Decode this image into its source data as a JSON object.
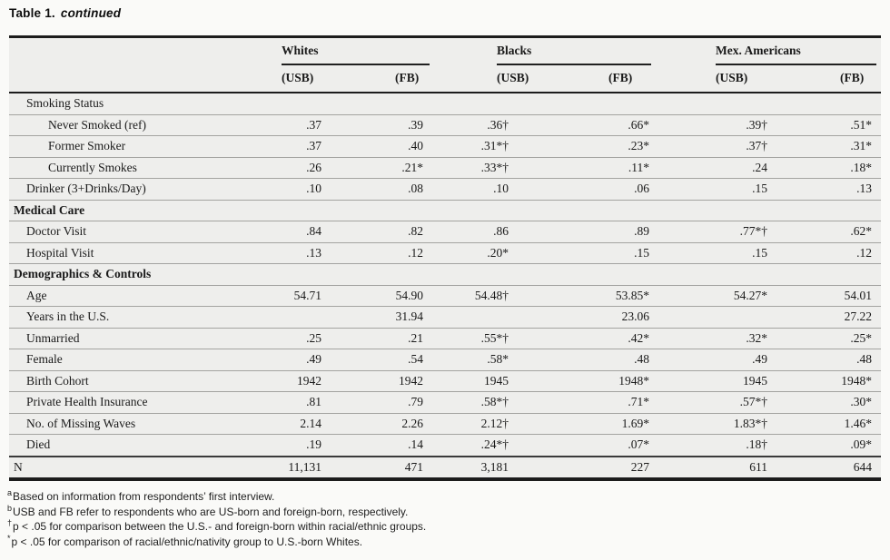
{
  "title": {
    "prefix": "Table 1.",
    "suffix": "continued"
  },
  "table": {
    "groups": [
      {
        "label": "Whites"
      },
      {
        "label": "Blacks"
      },
      {
        "label": "Mex. Americans"
      }
    ],
    "subheaders": [
      "(USB)",
      "(FB)",
      "(USB)",
      "(FB)",
      "(USB)",
      "(FB)"
    ],
    "rows": [
      {
        "label": "Smoking Status",
        "indent": 1,
        "bold": false,
        "values": [
          "",
          "",
          "",
          "",
          "",
          ""
        ]
      },
      {
        "label": "Never Smoked (ref)",
        "indent": 2,
        "bold": false,
        "values": [
          ".37",
          ".39",
          ".36†",
          ".66*",
          ".39†",
          ".51*"
        ]
      },
      {
        "label": "Former Smoker",
        "indent": 2,
        "bold": false,
        "values": [
          ".37",
          ".40",
          ".31*†",
          ".23*",
          ".37†",
          ".31*"
        ]
      },
      {
        "label": "Currently Smokes",
        "indent": 2,
        "bold": false,
        "values": [
          ".26",
          ".21*",
          ".33*†",
          ".11*",
          ".24",
          ".18*"
        ]
      },
      {
        "label": "Drinker (3+Drinks/Day)",
        "indent": 1,
        "bold": false,
        "values": [
          ".10",
          ".08",
          ".10",
          ".06",
          ".15",
          ".13"
        ]
      },
      {
        "label": "Medical Care",
        "indent": 0,
        "bold": true,
        "values": [
          "",
          "",
          "",
          "",
          "",
          ""
        ]
      },
      {
        "label": "Doctor Visit",
        "indent": 1,
        "bold": false,
        "values": [
          ".84",
          ".82",
          ".86",
          ".89",
          ".77*†",
          ".62*"
        ]
      },
      {
        "label": "Hospital Visit",
        "indent": 1,
        "bold": false,
        "values": [
          ".13",
          ".12",
          ".20*",
          ".15",
          ".15",
          ".12"
        ]
      },
      {
        "label": "Demographics & Controls",
        "indent": 0,
        "bold": true,
        "values": [
          "",
          "",
          "",
          "",
          "",
          ""
        ]
      },
      {
        "label": "Age",
        "indent": 1,
        "bold": false,
        "values": [
          "54.71",
          "54.90",
          "54.48†",
          "53.85*",
          "54.27*",
          "54.01"
        ]
      },
      {
        "label": "Years in the U.S.",
        "indent": 1,
        "bold": false,
        "values": [
          "",
          "31.94",
          "",
          "23.06",
          "",
          "27.22"
        ]
      },
      {
        "label": "Unmarried",
        "indent": 1,
        "bold": false,
        "values": [
          ".25",
          ".21",
          ".55*†",
          ".42*",
          ".32*",
          ".25*"
        ]
      },
      {
        "label": "Female",
        "indent": 1,
        "bold": false,
        "values": [
          ".49",
          ".54",
          ".58*",
          ".48",
          ".49",
          ".48"
        ]
      },
      {
        "label": "Birth Cohort",
        "indent": 1,
        "bold": false,
        "values": [
          "1942",
          "1942",
          "1945",
          "1948*",
          "1945",
          "1948*"
        ]
      },
      {
        "label": "Private Health Insurance",
        "indent": 1,
        "bold": false,
        "values": [
          ".81",
          ".79",
          ".58*†",
          ".71*",
          ".57*†",
          ".30*"
        ]
      },
      {
        "label": "No. of Missing Waves",
        "indent": 1,
        "bold": false,
        "values": [
          "2.14",
          "2.26",
          "2.12†",
          "1.69*",
          "1.83*†",
          "1.46*"
        ]
      },
      {
        "label": "Died",
        "indent": 1,
        "bold": false,
        "values": [
          ".19",
          ".14",
          ".24*†",
          ".07*",
          ".18†",
          ".09*"
        ]
      },
      {
        "label": "N",
        "indent": 0,
        "bold": false,
        "is_total": true,
        "values": [
          "11,131",
          "471",
          "3,181",
          "227",
          "611",
          "644"
        ]
      }
    ]
  },
  "footnotes": [
    {
      "marker": "a",
      "text": "Based on information from respondents’ first interview."
    },
    {
      "marker": "b",
      "text": "USB and FB refer to respondents who are US-born and foreign-born, respectively."
    },
    {
      "marker": "†",
      "text": "p < .05 for comparison between the U.S.- and foreign-born within racial/ethnic groups."
    },
    {
      "marker": "*",
      "text": "p < .05 for comparison of racial/ethnic/nativity group to U.S.-born Whites."
    }
  ]
}
